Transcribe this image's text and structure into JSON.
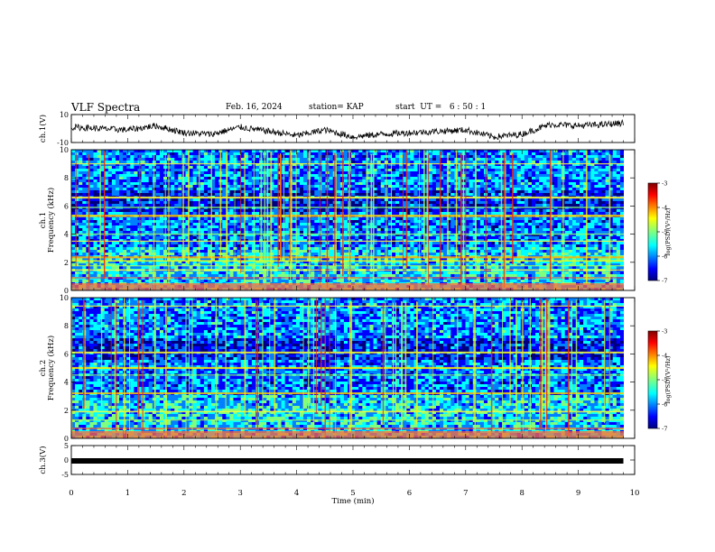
{
  "header": {
    "title": "VLF Spectra",
    "date": "Feb. 16, 2024",
    "station": "station= KAP",
    "start_ut": "start  UT =   6 : 50 : 1"
  },
  "chart_data": [
    {
      "type": "line",
      "panel": "ch1-waveform",
      "ylabel": "ch.1(V)",
      "ylim": [
        -10,
        10
      ],
      "y_ticks": [
        "10",
        "-10"
      ],
      "x": [
        0,
        0.5,
        1,
        1.5,
        2,
        2.5,
        3,
        3.5,
        4,
        4.5,
        5,
        5.5,
        6,
        6.5,
        7,
        7.5,
        8,
        8.5,
        9,
        9.5,
        9.8
      ],
      "y": [
        1,
        0,
        -1,
        2,
        -3,
        -4,
        1,
        -2,
        -5,
        -1,
        -6,
        -4,
        -3,
        -2,
        -1,
        -6,
        -4,
        3,
        2,
        3,
        4
      ],
      "color": "#000000"
    },
    {
      "type": "heatmap",
      "panel": "ch1-spectrogram",
      "ylabel": "ch.1\nFrequency  (kHz)",
      "ylim": [
        0,
        10
      ],
      "y_ticks": [
        "0",
        "2",
        "4",
        "6",
        "8",
        "10"
      ],
      "colorbar": {
        "label": "log(PSD)(V²/Hz)",
        "range": [
          -7,
          -3
        ],
        "ticks": [
          "-3",
          "-4",
          "-5",
          "-6",
          "-7"
        ]
      }
    },
    {
      "type": "heatmap",
      "panel": "ch2-spectrogram",
      "ylabel": "ch.2\nFrequency  (kHz)",
      "ylim": [
        0,
        10
      ],
      "y_ticks": [
        "0",
        "2",
        "4",
        "6",
        "8",
        "10"
      ],
      "colorbar": {
        "label": "log(PSD)(V²/Hz)",
        "range": [
          -7,
          -3
        ],
        "ticks": [
          "-3",
          "-4",
          "-5",
          "-6",
          "-7"
        ]
      }
    },
    {
      "type": "line",
      "panel": "ch3-waveform",
      "ylabel": "ch.3(V)",
      "ylim": [
        -5,
        5
      ],
      "y_ticks": [
        "5",
        "0",
        "-5"
      ],
      "x": [
        0,
        9.8
      ],
      "y": [
        -0.3,
        -0.3
      ],
      "color": "#000000"
    }
  ],
  "x_axis": {
    "label": "Time  (min)",
    "range": [
      0,
      10
    ],
    "ticks": [
      "0",
      "1",
      "2",
      "3",
      "4",
      "5",
      "6",
      "7",
      "8",
      "9",
      "10"
    ]
  },
  "colors": {
    "jet": [
      "#00007f",
      "#0000ff",
      "#007fff",
      "#00ffff",
      "#7fff7f",
      "#ffff00",
      "#ff7f00",
      "#ff0000",
      "#7f0000"
    ]
  }
}
